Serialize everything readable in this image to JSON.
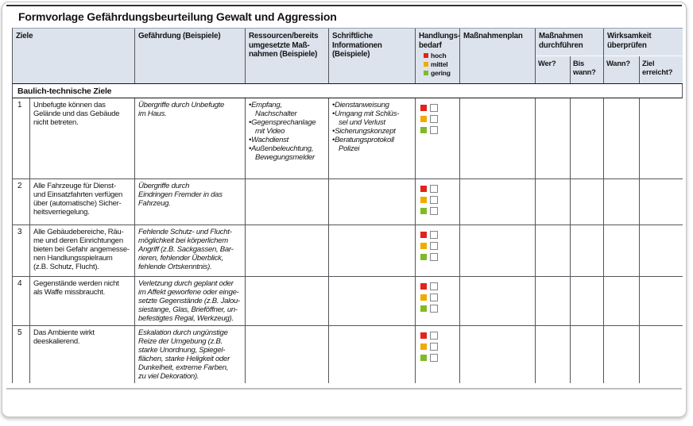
{
  "page": {
    "title": "Formvorlage Gefährdungsbeurteilung Gewalt und Aggression"
  },
  "legend": [
    {
      "label": "hoch",
      "color": "#e2231a"
    },
    {
      "label": "mittel",
      "color": "#f0ab00"
    },
    {
      "label": "gering",
      "color": "#80ba27"
    }
  ],
  "table": {
    "header": {
      "ziele": "Ziele",
      "gefaehrdung": "Gefährdung (Beispiele)",
      "ressourcen": "Ressourcen/bereits\numgesetzte Maß-\nnahmen (Beispiele)",
      "schriftliche": "Schriftliche\nInformationen\n(Beispiele)",
      "handlungsbedarf": "Handlungs-\nbedarf",
      "massnahmenplan": "Maßnahmenplan",
      "durchfuehren": "Maßnahmen\ndurchführen",
      "wer": "Wer?",
      "bis_wann": "Bis\nwann?",
      "wirksamkeit": "Wirksamkeit\nüberprüfen",
      "wann": "Wann?",
      "ziel_erreicht": "Ziel\nerreicht?"
    },
    "section": "Baulich-technische Ziele",
    "rows": [
      {
        "nr": "1",
        "ziel": "Unbefugte können das\nGelände und das Gebäude\nnicht betreten.",
        "gefaehrdung": "Übergriffe durch Unbefugte\nim Haus.",
        "ressourcen": [
          "Empfang,\nNachschalter",
          "Gegensprechanlage\nmit Video",
          "Wachdienst",
          "Außenbeleuchtung,\nBewegungsmelder"
        ],
        "schriftliche": [
          "Dienstanweisung",
          "Umgang mit Schlüs-\nsel und Verlust",
          "Sicherungskonzept",
          "Beratungsprotokoll\nPolizei"
        ]
      },
      {
        "nr": "2",
        "ziel": "Alle Fahrzeuge für Dienst-\nund Einsatzfahrten verfügen\nüber (automatische) Sicher-\nheitsverriegelung.",
        "gefaehrdung": "Übergriffe durch\nEindringen Fremder in das\nFahrzeug.",
        "ressourcen": [],
        "schriftliche": []
      },
      {
        "nr": "3",
        "ziel": "Alle Gebäudebereiche, Räu-\nme und deren Einrichtungen\nbieten bei Gefahr angemesse-\nnen Handlungsspielraum\n(z.B. Schutz, Flucht).",
        "gefaehrdung": "Fehlende Schutz- und Flucht-\nmöglichkeit bei körperlichem\nAngriff (z.B. Sackgassen, Bar-\nrieren, fehlender Überblick,\nfehlende Ortskenntnis).",
        "ressourcen": [],
        "schriftliche": []
      },
      {
        "nr": "4",
        "ziel": "Gegenstände werden nicht\nals Waffe missbraucht.",
        "gefaehrdung": "Verletzung durch geplant oder\nim Affekt geworfene oder einge-\nsetzte Gegenstände (z.B. Jalou-\nsiestange, Glas, Brieföffner, un-\nbefestigtes Regal, Werkzeug).",
        "ressourcen": [],
        "schriftliche": []
      },
      {
        "nr": "5",
        "ziel": "Das Ambiente wirkt\ndeeskalierend.",
        "gefaehrdung": "Eskalation durch ungünstige\nReize der Umgebung (z.B.\nstarke Unordnung, Spiegel-\nflächen, starke Heligkeit oder\nDunkelheit, extreme Farben,\nzu viel Dekoration).",
        "ressourcen": [],
        "schriftliche": []
      }
    ]
  }
}
